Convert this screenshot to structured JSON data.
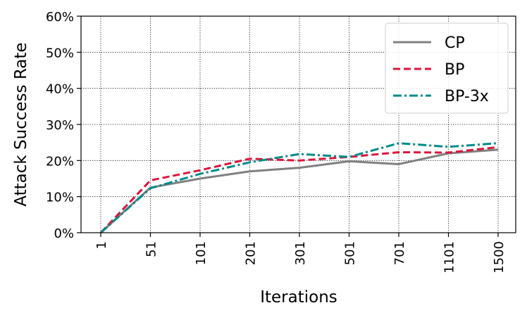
{
  "chart_data": {
    "type": "line",
    "title": "",
    "xlabel": "Iterations",
    "ylabel": "Attack Success Rate",
    "categories": [
      "1",
      "51",
      "101",
      "201",
      "301",
      "501",
      "701",
      "1101",
      "1500"
    ],
    "y_tick_labels": [
      "0%",
      "10%",
      "20%",
      "30%",
      "40%",
      "50%",
      "60%"
    ],
    "ylim": [
      0,
      60
    ],
    "y_unit": "%",
    "grid": true,
    "legend_position": "top-right",
    "series": [
      {
        "name": "CP",
        "color": "#808080",
        "style": "solid",
        "values": [
          0,
          12.5,
          15,
          17,
          18,
          19.8,
          19,
          22,
          23
        ]
      },
      {
        "name": "BP",
        "color": "#dc143c",
        "style": "dashed",
        "values": [
          0,
          14.5,
          17.3,
          20.5,
          20,
          21,
          22.3,
          22.2,
          23.7
        ]
      },
      {
        "name": "BP-3x",
        "color": "#008b8b",
        "style": "dashdot",
        "values": [
          0,
          12.3,
          16.3,
          19.5,
          21.8,
          21,
          24.8,
          23.8,
          24.8
        ]
      }
    ]
  }
}
